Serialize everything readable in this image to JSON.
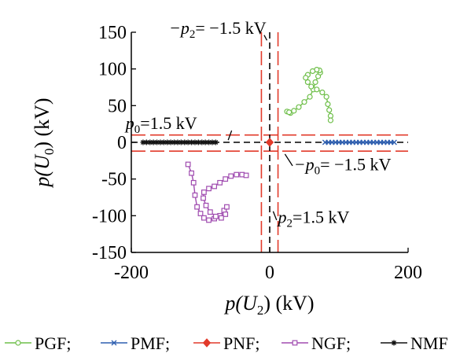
{
  "chart_data": {
    "type": "scatter",
    "title": "",
    "xlabel": "p(U2) (kV)",
    "ylabel": "p(U0) (kV)",
    "xlim": [
      -200,
      200
    ],
    "ylim": [
      -150,
      150
    ],
    "x_ticks": [
      -200,
      0,
      200
    ],
    "y_ticks": [
      150,
      100,
      50,
      0,
      -50,
      -100,
      -150
    ],
    "x_tick_labels": [
      "-200",
      "0",
      "200"
    ],
    "y_tick_labels": [
      "150",
      "100",
      "50",
      "0",
      "-50",
      "-100",
      "-150"
    ],
    "grid": false,
    "legend_position": "bottom",
    "thresholds": {
      "p0_kV": 1.5,
      "p2_kV": 1.5,
      "dashed_black_lines": [
        {
          "axis": "x",
          "value": 0
        },
        {
          "axis": "y",
          "value": 0
        }
      ],
      "dashed_red_lines_x": [
        -12,
        12
      ],
      "dashed_red_lines_y": [
        -12,
        10
      ]
    },
    "annotations": [
      {
        "id": "neg-p2",
        "prefix": "−p",
        "sub": "2",
        "suffix": "= −1.5 kV",
        "x": -5,
        "y": 148
      },
      {
        "id": "p0",
        "prefix": "p",
        "sub": "0",
        "suffix": "=1.5 kV",
        "x": -105,
        "y": 18
      },
      {
        "id": "neg-p0",
        "prefix": "−p",
        "sub": "0",
        "suffix": "= −1.5 kV",
        "x": 35,
        "y": -38
      },
      {
        "id": "p2",
        "prefix": "p",
        "sub": "2",
        "suffix": "=1.5 kV",
        "x": 12,
        "y": -110
      }
    ],
    "series": [
      {
        "name": "PGF",
        "color": "#6fbf4a",
        "marker": "circle",
        "points": [
          [
            30,
            40
          ],
          [
            25,
            42
          ],
          [
            28,
            41
          ],
          [
            35,
            43
          ],
          [
            42,
            48
          ],
          [
            50,
            55
          ],
          [
            58,
            62
          ],
          [
            63,
            72
          ],
          [
            66,
            82
          ],
          [
            70,
            90
          ],
          [
            73,
            95
          ],
          [
            72,
            98
          ],
          [
            68,
            99
          ],
          [
            62,
            97
          ],
          [
            55,
            92
          ],
          [
            52,
            88
          ],
          [
            55,
            82
          ],
          [
            60,
            76
          ],
          [
            68,
            72
          ],
          [
            76,
            68
          ],
          [
            82,
            62
          ],
          [
            84,
            52
          ],
          [
            86,
            44
          ],
          [
            88,
            36
          ],
          [
            88,
            30
          ]
        ]
      },
      {
        "name": "PMF",
        "color": "#2e5fb0",
        "marker": "x",
        "points": [
          [
            80,
            0
          ],
          [
            85,
            0
          ],
          [
            90,
            0
          ],
          [
            95,
            0
          ],
          [
            100,
            0
          ],
          [
            105,
            0
          ],
          [
            110,
            0
          ],
          [
            115,
            0
          ],
          [
            120,
            0
          ],
          [
            125,
            0
          ],
          [
            130,
            0
          ],
          [
            135,
            0
          ],
          [
            140,
            0
          ],
          [
            145,
            0
          ],
          [
            150,
            0
          ],
          [
            155,
            0
          ],
          [
            160,
            0
          ],
          [
            165,
            0
          ],
          [
            170,
            0
          ],
          [
            175,
            0
          ],
          [
            180,
            0
          ]
        ]
      },
      {
        "name": "PNF",
        "color": "#e23a2a",
        "marker": "diamond",
        "points": [
          [
            0,
            0
          ]
        ]
      },
      {
        "name": "NGF",
        "color": "#a04cb0",
        "marker": "square",
        "points": [
          [
            -118,
            -30
          ],
          [
            -113,
            -42
          ],
          [
            -110,
            -55
          ],
          [
            -108,
            -72
          ],
          [
            -105,
            -88
          ],
          [
            -100,
            -97
          ],
          [
            -95,
            -103
          ],
          [
            -88,
            -106
          ],
          [
            -80,
            -104
          ],
          [
            -72,
            -100
          ],
          [
            -66,
            -93
          ],
          [
            -62,
            -88
          ],
          [
            -64,
            -98
          ],
          [
            -70,
            -103
          ],
          [
            -78,
            -101
          ],
          [
            -86,
            -95
          ],
          [
            -92,
            -86
          ],
          [
            -96,
            -76
          ],
          [
            -95,
            -68
          ],
          [
            -88,
            -63
          ],
          [
            -80,
            -60
          ],
          [
            -72,
            -55
          ],
          [
            -64,
            -50
          ],
          [
            -56,
            -46
          ],
          [
            -48,
            -44
          ],
          [
            -40,
            -44
          ],
          [
            -34,
            -45
          ]
        ]
      },
      {
        "name": "NMF",
        "color": "#111111",
        "marker": "star",
        "points": [
          [
            -183,
            0
          ],
          [
            -178,
            0
          ],
          [
            -173,
            0
          ],
          [
            -168,
            0
          ],
          [
            -163,
            0
          ],
          [
            -158,
            0
          ],
          [
            -153,
            0
          ],
          [
            -148,
            0
          ],
          [
            -143,
            0
          ],
          [
            -138,
            0
          ],
          [
            -133,
            0
          ],
          [
            -128,
            0
          ],
          [
            -123,
            0
          ],
          [
            -118,
            0
          ],
          [
            -113,
            0
          ],
          [
            -108,
            0
          ],
          [
            -103,
            0
          ],
          [
            -98,
            0
          ],
          [
            -93,
            0
          ],
          [
            -88,
            0
          ],
          [
            -83,
            0
          ],
          [
            -78,
            0
          ]
        ]
      }
    ]
  },
  "labels": {
    "y_axis": {
      "prefix": "p(U",
      "sub": "0",
      "suffix": ") (kV)"
    },
    "x_axis": {
      "prefix": "p(U",
      "sub": "2",
      "suffix": ") (kV)"
    }
  },
  "legend": {
    "items": [
      {
        "name": "PGF",
        "label": "PGF;",
        "color": "#6fbf4a",
        "marker": "circle"
      },
      {
        "name": "PMF",
        "label": "PMF;",
        "color": "#2e5fb0",
        "marker": "x"
      },
      {
        "name": "PNF",
        "label": "PNF;",
        "color": "#e23a2a",
        "marker": "diamond"
      },
      {
        "name": "NGF",
        "label": "NGF;",
        "color": "#a04cb0",
        "marker": "square"
      },
      {
        "name": "NMF",
        "label": "NMF",
        "color": "#111111",
        "marker": "star"
      }
    ]
  },
  "colors": {
    "axis": "#000000",
    "threshold_red": "#e23a2a",
    "threshold_black": "#000000"
  }
}
